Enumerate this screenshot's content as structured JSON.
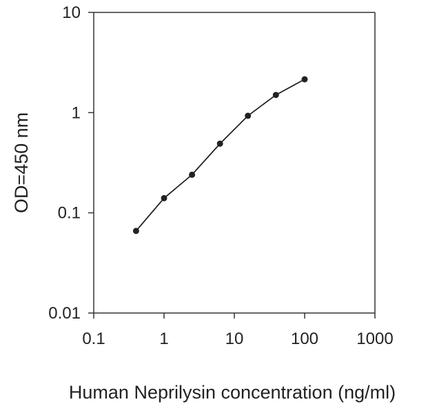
{
  "chart_data": {
    "type": "line",
    "title": "",
    "xlabel": "Human Neprilysin concentration (ng/ml)",
    "ylabel": "OD=450 nm",
    "x_scale": "log",
    "y_scale": "log",
    "xlim": [
      0.1,
      1000
    ],
    "ylim": [
      0.01,
      10
    ],
    "x_ticks": [
      0.1,
      1,
      10,
      100,
      1000
    ],
    "x_tick_labels": [
      "0.1",
      "1",
      "10",
      "100",
      "1000"
    ],
    "y_ticks": [
      0.01,
      0.1,
      1,
      10
    ],
    "y_tick_labels": [
      "0.01",
      "0.1",
      "1",
      "10"
    ],
    "grid": false,
    "series": [
      {
        "x": [
          0.4,
          1,
          2.5,
          6.25,
          15.6,
          39,
          100
        ],
        "y": [
          0.066,
          0.14,
          0.24,
          0.49,
          0.93,
          1.5,
          2.15
        ]
      }
    ],
    "colors": {
      "line": "#222222",
      "marker": "#222222",
      "axis": "#333333"
    }
  }
}
